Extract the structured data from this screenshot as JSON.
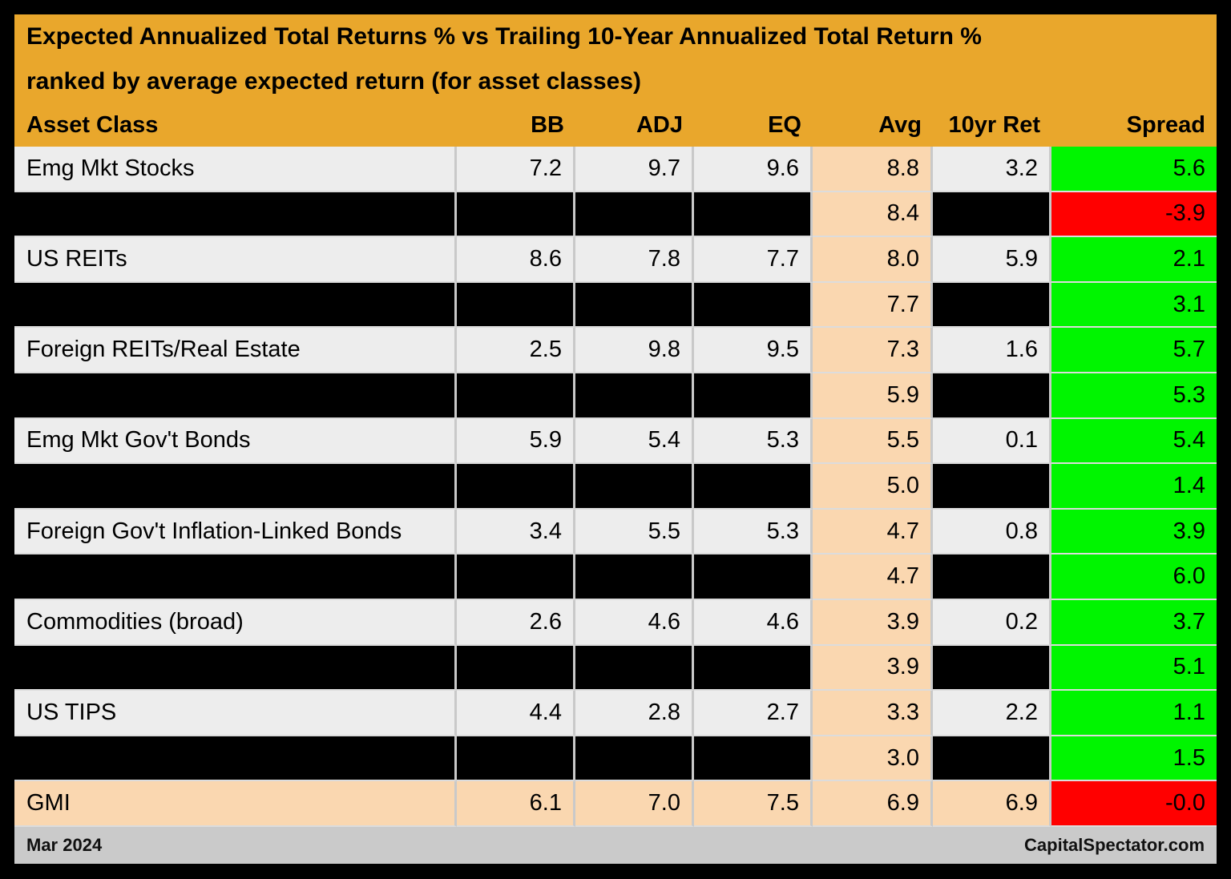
{
  "colors": {
    "gold": "#E9A72C",
    "row_light": "#EDEDED",
    "row_blackout": "#000000",
    "avg_peach": "#FAD7B0",
    "gmi_peach": "#FAD7B0",
    "spread_positive": "#00F500",
    "spread_negative": "#FF0000",
    "divider": "#C9C9C9",
    "hdivider": "#DCDCDC",
    "footer_bg": "#CACACA"
  },
  "footer": {
    "left": "Mar 2024",
    "right": "CapitalSpectator.com"
  },
  "chart_data": {
    "type": "table",
    "title": "Expected Annualized Total Returns % vs Trailing 10-Year Annualized Total Return %",
    "subtitle": "ranked by average expected return (for asset classes)",
    "columns": [
      "Asset Class",
      "BB",
      "ADJ",
      "EQ",
      "Avg",
      "10yr Ret",
      "Spread"
    ],
    "rows": [
      {
        "asset": "Emg Mkt Stocks",
        "bb": "7.2",
        "adj": "9.7",
        "eq": "9.6",
        "avg": "8.8",
        "tenyr": "3.2",
        "spread": "5.6",
        "row_style": "light",
        "spread_style": "positive"
      },
      {
        "asset": "",
        "bb": "",
        "adj": "",
        "eq": "",
        "avg": "8.4",
        "tenyr": "",
        "spread": "-3.9",
        "row_style": "blackout",
        "spread_style": "negative"
      },
      {
        "asset": "US REITs",
        "bb": "8.6",
        "adj": "7.8",
        "eq": "7.7",
        "avg": "8.0",
        "tenyr": "5.9",
        "spread": "2.1",
        "row_style": "light",
        "spread_style": "positive"
      },
      {
        "asset": "",
        "bb": "",
        "adj": "",
        "eq": "",
        "avg": "7.7",
        "tenyr": "",
        "spread": "3.1",
        "row_style": "blackout",
        "spread_style": "positive"
      },
      {
        "asset": "Foreign REITs/Real Estate",
        "bb": "2.5",
        "adj": "9.8",
        "eq": "9.5",
        "avg": "7.3",
        "tenyr": "1.6",
        "spread": "5.7",
        "row_style": "light",
        "spread_style": "positive"
      },
      {
        "asset": "",
        "bb": "",
        "adj": "",
        "eq": "",
        "avg": "5.9",
        "tenyr": "",
        "spread": "5.3",
        "row_style": "blackout",
        "spread_style": "positive"
      },
      {
        "asset": "Emg Mkt Gov't Bonds",
        "bb": "5.9",
        "adj": "5.4",
        "eq": "5.3",
        "avg": "5.5",
        "tenyr": "0.1",
        "spread": "5.4",
        "row_style": "light",
        "spread_style": "positive"
      },
      {
        "asset": "",
        "bb": "",
        "adj": "",
        "eq": "",
        "avg": "5.0",
        "tenyr": "",
        "spread": "1.4",
        "row_style": "blackout",
        "spread_style": "positive"
      },
      {
        "asset": "Foreign Gov't Inflation-Linked Bonds",
        "bb": "3.4",
        "adj": "5.5",
        "eq": "5.3",
        "avg": "4.7",
        "tenyr": "0.8",
        "spread": "3.9",
        "row_style": "light",
        "spread_style": "positive"
      },
      {
        "asset": "",
        "bb": "",
        "adj": "",
        "eq": "",
        "avg": "4.7",
        "tenyr": "",
        "spread": "6.0",
        "row_style": "blackout",
        "spread_style": "positive"
      },
      {
        "asset": "Commodities (broad)",
        "bb": "2.6",
        "adj": "4.6",
        "eq": "4.6",
        "avg": "3.9",
        "tenyr": "0.2",
        "spread": "3.7",
        "row_style": "light",
        "spread_style": "positive"
      },
      {
        "asset": "",
        "bb": "",
        "adj": "",
        "eq": "",
        "avg": "3.9",
        "tenyr": "",
        "spread": "5.1",
        "row_style": "blackout",
        "spread_style": "positive"
      },
      {
        "asset": "US TIPS",
        "bb": "4.4",
        "adj": "2.8",
        "eq": "2.7",
        "avg": "3.3",
        "tenyr": "2.2",
        "spread": "1.1",
        "row_style": "light",
        "spread_style": "positive"
      },
      {
        "asset": "",
        "bb": "",
        "adj": "",
        "eq": "",
        "avg": "3.0",
        "tenyr": "",
        "spread": "1.5",
        "row_style": "blackout",
        "spread_style": "positive"
      },
      {
        "asset": "GMI",
        "bb": "6.1",
        "adj": "7.0",
        "eq": "7.5",
        "avg": "6.9",
        "tenyr": "6.9",
        "spread": "-0.0",
        "row_style": "gmi",
        "spread_style": "negative"
      }
    ]
  }
}
